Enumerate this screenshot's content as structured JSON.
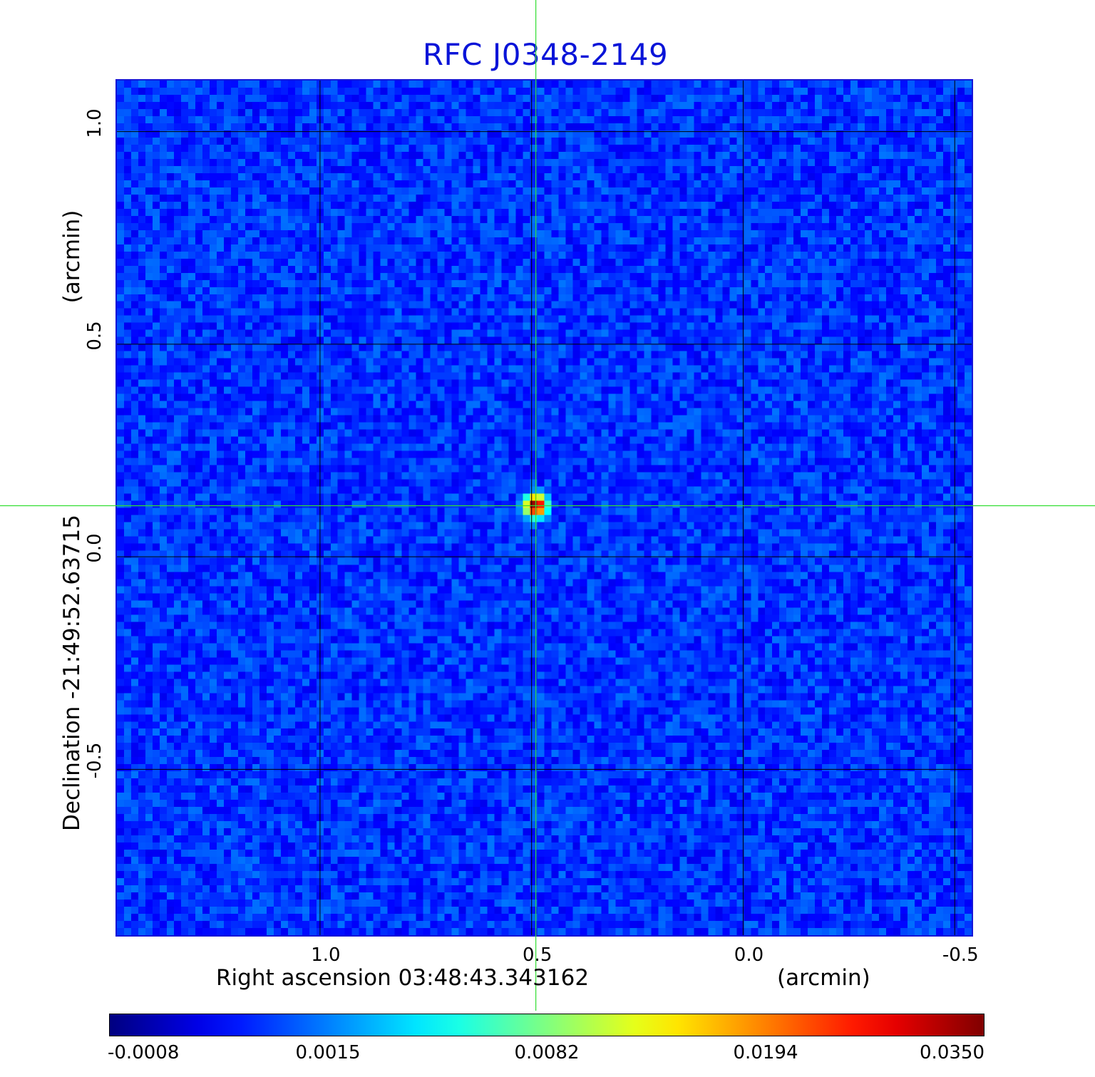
{
  "chart_data": {
    "type": "heatmap",
    "title": "RFC J0348-2149",
    "xlabel": "Right ascension  03:48:43.343162",
    "x_unit": "(arcmin)",
    "ylabel": "Declination  -21:49:52.63715",
    "y_unit": "(arcmin)",
    "x_axis": {
      "direction": "decreasing-right",
      "xlim": [
        1.48,
        -0.54
      ],
      "ticks": [
        "1.0",
        "0.5",
        "0.0",
        "-0.5"
      ],
      "tick_values": [
        1.0,
        0.5,
        0.0,
        -0.5
      ]
    },
    "y_axis": {
      "ylim": [
        -0.89,
        1.12
      ],
      "ticks": [
        "1.0",
        "0.5",
        "0.0",
        "-0.5"
      ],
      "tick_values": [
        1.0,
        0.5,
        0.0,
        -0.5
      ]
    },
    "grid": true,
    "colormap": "jet",
    "colorbar": {
      "ticks": [
        "-0.0008",
        "0.0015",
        "0.0082",
        "0.0194",
        "0.0350"
      ],
      "tick_values": [
        -0.0008,
        0.0015,
        0.0082,
        0.0194,
        0.035
      ]
    },
    "background_level": 0.0008,
    "source_peak": {
      "x": 0.49,
      "y": 0.12,
      "value": 0.035
    },
    "crosshair": {
      "x": 0.49,
      "y": 0.12,
      "color": "#33dd33"
    }
  }
}
